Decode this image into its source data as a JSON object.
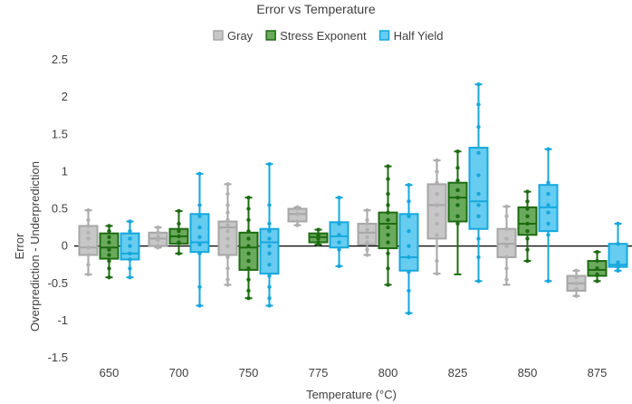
{
  "chart_data": {
    "type": "box",
    "title": "Error vs Temperature",
    "xlabel": "Temperature (°C)",
    "ylabel_lines": [
      "Error",
      "Overprediction - Underprediction"
    ],
    "ylim": [
      -1.5,
      2.5
    ],
    "yticks": [
      -1.5,
      -1,
      -0.5,
      0,
      0.5,
      1,
      1.5,
      2,
      2.5
    ],
    "ytick_labels": [
      "-1.5",
      "-1",
      "-0.5",
      "0",
      "0.5",
      "1",
      "1.5",
      "2",
      "2.5"
    ],
    "grid": false,
    "legend_position": "top",
    "categories": [
      "650",
      "700",
      "750",
      "775",
      "800",
      "825",
      "850",
      "875"
    ],
    "series": [
      {
        "name": "Gray",
        "fill": "#c7c7c7",
        "stroke": "#a6a6a6",
        "point": "#b0b0b0",
        "boxes": [
          {
            "min": -0.38,
            "q1": -0.12,
            "median": -0.02,
            "q3": 0.27,
            "max": 0.48,
            "points": [
              0.48,
              0.35,
              0.27,
              0.18,
              0.1,
              -0.02,
              -0.12,
              -0.25,
              -0.38
            ]
          },
          {
            "min": -0.02,
            "q1": 0.0,
            "median": 0.1,
            "q3": 0.18,
            "max": 0.25,
            "points": [
              0.25,
              0.18,
              0.12,
              0.08,
              0.0,
              -0.02
            ]
          },
          {
            "min": -0.52,
            "q1": -0.12,
            "median": 0.25,
            "q3": 0.33,
            "max": 0.83,
            "points": [
              0.83,
              0.7,
              0.55,
              0.45,
              0.35,
              0.28,
              0.2,
              0.1,
              0.0,
              -0.15,
              -0.3,
              -0.45,
              -0.52
            ]
          },
          {
            "min": 0.28,
            "q1": 0.33,
            "median": 0.43,
            "q3": 0.5,
            "max": 0.52,
            "points": [
              0.52,
              0.5,
              0.43,
              0.33,
              0.28
            ]
          },
          {
            "min": -0.12,
            "q1": 0.02,
            "median": 0.18,
            "q3": 0.3,
            "max": 0.48,
            "points": [
              0.48,
              0.35,
              0.3,
              0.22,
              0.12,
              0.05,
              -0.05,
              -0.12
            ]
          },
          {
            "min": -0.37,
            "q1": 0.1,
            "median": 0.55,
            "q3": 0.83,
            "max": 1.15,
            "points": [
              1.15,
              1.0,
              0.85,
              0.7,
              0.55,
              0.42,
              0.3,
              0.15,
              0.0,
              -0.2,
              -0.37
            ]
          },
          {
            "min": -0.52,
            "q1": -0.15,
            "median": 0.03,
            "q3": 0.23,
            "max": 0.53,
            "points": [
              0.53,
              0.4,
              0.23,
              0.1,
              0.0,
              -0.15,
              -0.3,
              -0.45
            ]
          },
          {
            "min": -0.67,
            "q1": -0.6,
            "median": -0.5,
            "q3": -0.4,
            "max": -0.33,
            "points": [
              -0.33,
              -0.42,
              -0.5,
              -0.58,
              -0.67
            ]
          }
        ]
      },
      {
        "name": "Stress Exponent",
        "fill": "#6aaa5c",
        "stroke": "#1e6b12",
        "point": "#1e6b12",
        "boxes": [
          {
            "min": -0.42,
            "q1": -0.17,
            "median": -0.02,
            "q3": 0.17,
            "max": 0.27,
            "points": [
              0.27,
              0.2,
              0.12,
              0.05,
              -0.05,
              -0.12,
              -0.2,
              -0.3,
              -0.42
            ]
          },
          {
            "min": -0.1,
            "q1": 0.03,
            "median": 0.13,
            "q3": 0.23,
            "max": 0.47,
            "points": [
              0.47,
              0.3,
              0.2,
              0.13,
              0.05,
              -0.1
            ]
          },
          {
            "min": -0.7,
            "q1": -0.32,
            "median": -0.02,
            "q3": 0.18,
            "max": 0.65,
            "points": [
              0.65,
              0.5,
              0.35,
              0.2,
              0.1,
              0.0,
              -0.1,
              -0.2,
              -0.3,
              -0.45,
              -0.6,
              -0.7
            ]
          },
          {
            "min": 0.02,
            "q1": 0.05,
            "median": 0.12,
            "q3": 0.17,
            "max": 0.22,
            "points": [
              0.22,
              0.15,
              0.1,
              0.05,
              0.02
            ]
          },
          {
            "min": -0.52,
            "q1": -0.03,
            "median": 0.3,
            "q3": 0.45,
            "max": 1.07,
            "points": [
              1.07,
              0.9,
              0.7,
              0.55,
              0.45,
              0.35,
              0.25,
              0.15,
              0.05,
              -0.1,
              -0.3,
              -0.52
            ]
          },
          {
            "min": -0.38,
            "q1": 0.33,
            "median": 0.65,
            "q3": 0.85,
            "max": 1.27,
            "points": [
              1.27,
              1.05,
              0.88,
              0.75,
              0.65,
              0.55,
              0.4,
              0.3
            ]
          },
          {
            "min": -0.2,
            "q1": 0.15,
            "median": 0.3,
            "q3": 0.52,
            "max": 0.73,
            "points": [
              0.73,
              0.6,
              0.5,
              0.4,
              0.3,
              0.2,
              0.1,
              -0.05,
              -0.2
            ]
          },
          {
            "min": -0.47,
            "q1": -0.4,
            "median": -0.32,
            "q3": -0.2,
            "max": -0.08,
            "points": [
              -0.08,
              -0.2,
              -0.3,
              -0.38,
              -0.47
            ]
          }
        ]
      },
      {
        "name": "Half Yield",
        "fill": "#66ccf0",
        "stroke": "#16a7dc",
        "point": "#16a7dc",
        "boxes": [
          {
            "min": -0.42,
            "q1": -0.18,
            "median": -0.1,
            "q3": 0.17,
            "max": 0.33,
            "points": [
              0.33,
              0.2,
              0.1,
              0.0,
              -0.1,
              -0.18,
              -0.3,
              -0.42
            ]
          },
          {
            "min": -0.8,
            "q1": -0.08,
            "median": 0.05,
            "q3": 0.43,
            "max": 0.97,
            "points": [
              0.97,
              0.55,
              0.4,
              0.25,
              0.12,
              0.02,
              -0.1,
              -0.55,
              -0.8
            ]
          },
          {
            "min": -0.8,
            "q1": -0.37,
            "median": 0.05,
            "q3": 0.23,
            "max": 1.1,
            "points": [
              1.1,
              0.55,
              0.3,
              0.2,
              0.1,
              0.0,
              -0.1,
              -0.25,
              -0.4,
              -0.55,
              -0.7,
              -0.8
            ]
          },
          {
            "min": -0.27,
            "q1": -0.02,
            "median": 0.13,
            "q3": 0.32,
            "max": 0.65,
            "points": [
              0.65,
              0.3,
              0.15,
              0.05,
              -0.05,
              -0.27
            ]
          },
          {
            "min": -0.9,
            "q1": -0.33,
            "median": -0.15,
            "q3": 0.43,
            "max": 0.82,
            "points": [
              0.82,
              0.6,
              0.4,
              0.2,
              0.0,
              -0.15,
              -0.35,
              -0.6,
              -0.9
            ]
          },
          {
            "min": -0.47,
            "q1": 0.23,
            "median": 0.6,
            "q3": 1.32,
            "max": 2.17,
            "points": [
              2.17,
              1.9,
              1.6,
              1.25,
              0.95,
              0.7,
              0.55,
              0.4,
              0.1,
              -0.15,
              -0.47
            ]
          },
          {
            "min": -0.47,
            "q1": 0.2,
            "median": 0.52,
            "q3": 0.82,
            "max": 1.3,
            "points": [
              1.3,
              0.85,
              0.7,
              0.55,
              0.45,
              0.3,
              0.15,
              -0.47
            ]
          },
          {
            "min": -0.33,
            "q1": -0.28,
            "median": -0.25,
            "q3": 0.03,
            "max": 0.3,
            "points": [
              0.3,
              0.03,
              -0.22,
              -0.28,
              -0.33
            ]
          }
        ]
      }
    ]
  }
}
